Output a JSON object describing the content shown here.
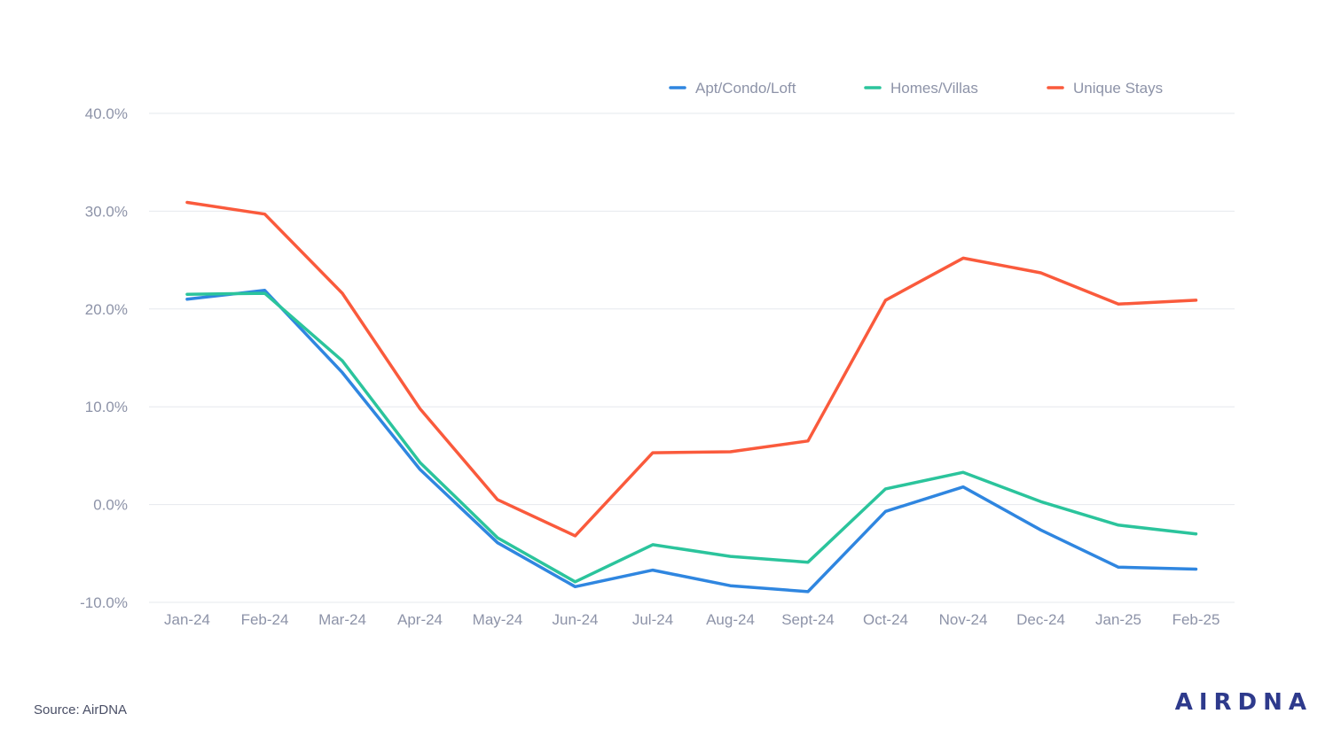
{
  "chart_data": {
    "type": "line",
    "title": "",
    "xlabel": "",
    "ylabel": "",
    "categories": [
      "Jan-24",
      "Feb-24",
      "Mar-24",
      "Apr-24",
      "May-24",
      "Jun-24",
      "Jul-24",
      "Aug-24",
      "Sept-24",
      "Oct-24",
      "Nov-24",
      "Dec-24",
      "Jan-25",
      "Feb-25"
    ],
    "ylim": [
      -10,
      40
    ],
    "y_ticks": [
      {
        "value": 40,
        "label": "40.0%"
      },
      {
        "value": 30,
        "label": "30.0%"
      },
      {
        "value": 20,
        "label": "20.0%"
      },
      {
        "value": 10,
        "label": "10.0%"
      },
      {
        "value": 0,
        "label": "0.0%"
      },
      {
        "value": -10,
        "label": "-10.0%"
      }
    ],
    "grid": true,
    "legend_position": "top-right",
    "series": [
      {
        "name": "Apt/Condo/Loft",
        "color": "#2f86e0",
        "values": [
          21.0,
          21.9,
          13.5,
          3.6,
          -3.9,
          -8.4,
          -6.7,
          -8.3,
          -8.9,
          -0.7,
          1.8,
          -2.6,
          -6.4,
          -6.6
        ]
      },
      {
        "name": "Homes/Villas",
        "color": "#2bc49c",
        "values": [
          21.5,
          21.6,
          14.7,
          4.3,
          -3.4,
          -7.9,
          -4.1,
          -5.3,
          -5.9,
          1.6,
          3.3,
          0.3,
          -2.1,
          -3.0
        ]
      },
      {
        "name": "Unique Stays",
        "color": "#fa5a3c",
        "values": [
          30.9,
          29.7,
          21.6,
          9.8,
          0.5,
          -3.2,
          5.3,
          5.4,
          6.5,
          20.9,
          25.2,
          23.7,
          20.5,
          20.9
        ]
      }
    ]
  },
  "footer": {
    "source": "Source: AirDNA",
    "brand": "AIRDNA"
  }
}
